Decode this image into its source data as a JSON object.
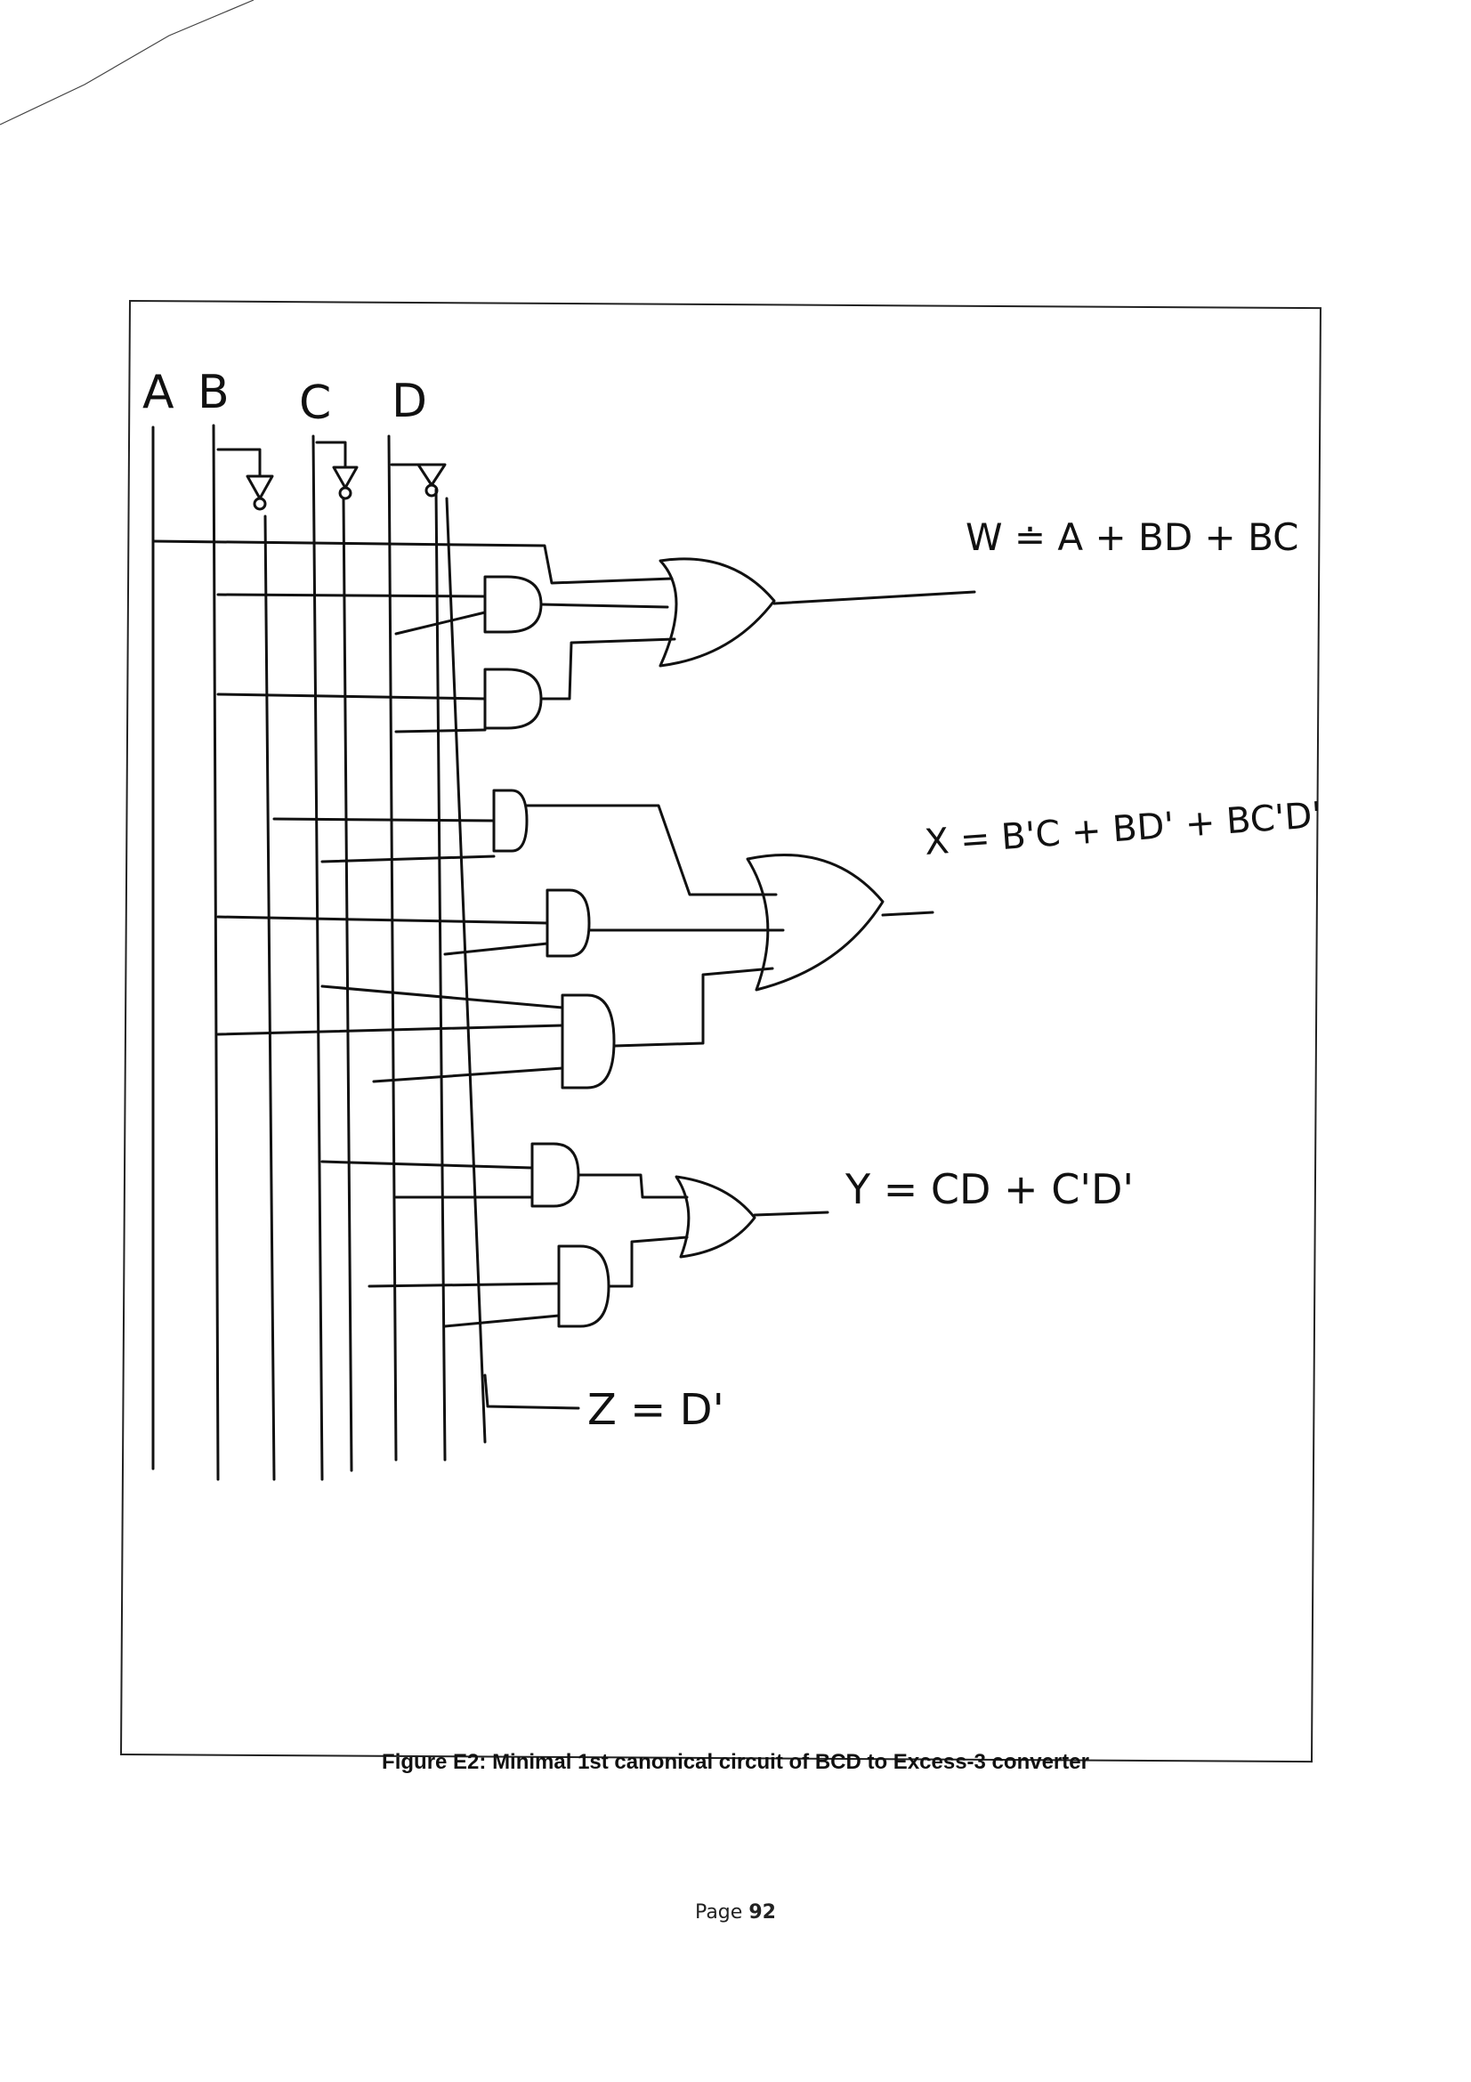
{
  "diagram": {
    "inputs": [
      "A",
      "B",
      "C",
      "D"
    ],
    "equations": {
      "w": "W ≐ A + BD + BC",
      "x": "X = B'C + BD' + BC'D'",
      "y": "Y = CD + C'D'",
      "z": "Z = D'"
    },
    "gates": {
      "and_count": 7,
      "or_count": 3,
      "not_count": 3
    }
  },
  "caption": "Figure E2: Minimal 1st canonical circuit of BCD to Excess-3 converter",
  "footer": {
    "label": "Page",
    "number": "92"
  }
}
